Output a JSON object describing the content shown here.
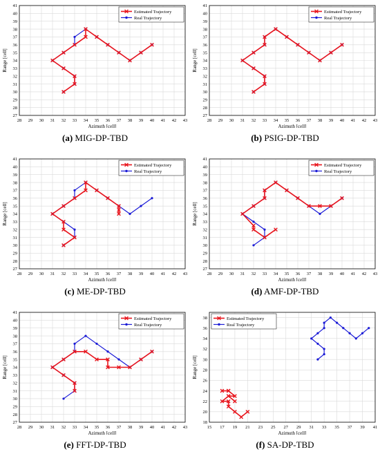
{
  "colors": {
    "estimated": "#e8141c",
    "real": "#1a1ad6",
    "grid": "#d9d9d9",
    "axis": "#000000"
  },
  "legend": {
    "estimated": "Estimated Trajectory",
    "real": "Real Trajectory"
  },
  "chart_data": [
    {
      "type": "line",
      "panel_label": "(a)",
      "caption": "MIG-DP-TBD",
      "xlabel": "Azimuth [cell]",
      "ylabel": "Range [cell]",
      "xlim": [
        28,
        43
      ],
      "ylim": [
        27,
        41
      ],
      "xticks": [
        28,
        29,
        30,
        31,
        32,
        33,
        34,
        35,
        36,
        37,
        38,
        39,
        40,
        41,
        42,
        43
      ],
      "yticks": [
        27,
        28,
        29,
        30,
        31,
        32,
        33,
        34,
        35,
        36,
        37,
        38,
        39,
        40,
        41
      ],
      "grid": true,
      "legend_position": "top-right",
      "series": [
        {
          "name": "Estimated Trajectory",
          "marker": "x",
          "x": [
            32,
            33,
            33,
            32,
            31,
            32,
            33,
            34,
            34,
            35,
            36,
            37,
            38,
            39,
            40
          ],
          "y": [
            30,
            31,
            32,
            33,
            34,
            35,
            36,
            37,
            38,
            37,
            36,
            35,
            34,
            35,
            36
          ]
        },
        {
          "name": "Real Trajectory",
          "marker": "dot",
          "x": [
            32,
            33,
            33,
            32,
            31,
            32,
            33,
            33,
            34,
            35,
            36,
            37,
            38,
            39,
            40
          ],
          "y": [
            30,
            31,
            32,
            33,
            34,
            35,
            36,
            37,
            38,
            37,
            36,
            35,
            34,
            35,
            36
          ]
        }
      ]
    },
    {
      "type": "line",
      "panel_label": "(b)",
      "caption": "PSIG-DP-TBD",
      "xlabel": "Azimuth [cell]",
      "ylabel": "Range [cell]",
      "xlim": [
        28,
        43
      ],
      "ylim": [
        27,
        41
      ],
      "xticks": [
        28,
        29,
        30,
        31,
        32,
        33,
        34,
        35,
        36,
        37,
        38,
        39,
        40,
        41,
        42,
        43
      ],
      "yticks": [
        27,
        28,
        29,
        30,
        31,
        32,
        33,
        34,
        35,
        36,
        37,
        38,
        39,
        40,
        41
      ],
      "grid": true,
      "legend_position": "top-right",
      "series": [
        {
          "name": "Estimated Trajectory",
          "marker": "x",
          "x": [
            32,
            33,
            33,
            32,
            31,
            32,
            33,
            33,
            34,
            35,
            36,
            37,
            38,
            39,
            40
          ],
          "y": [
            30,
            31,
            32,
            33,
            34,
            35,
            36,
            37,
            38,
            37,
            36,
            35,
            34,
            35,
            36
          ]
        },
        {
          "name": "Real Trajectory",
          "marker": "dot",
          "x": [
            32,
            33,
            33,
            32,
            31,
            32,
            33,
            33,
            34,
            35,
            36,
            37,
            38,
            39,
            40
          ],
          "y": [
            30,
            31,
            32,
            33,
            34,
            35,
            36,
            37,
            38,
            37,
            36,
            35,
            34,
            35,
            36
          ]
        }
      ]
    },
    {
      "type": "line",
      "panel_label": "(c)",
      "caption": "ME-DP-TBD",
      "xlabel": "Azimuth [cell]",
      "ylabel": "Range [cell]",
      "xlim": [
        28,
        43
      ],
      "ylim": [
        27,
        41
      ],
      "xticks": [
        28,
        29,
        30,
        31,
        32,
        33,
        34,
        35,
        36,
        37,
        38,
        39,
        40,
        41,
        42,
        43
      ],
      "yticks": [
        27,
        28,
        29,
        30,
        31,
        32,
        33,
        34,
        35,
        36,
        37,
        38,
        39,
        40,
        41
      ],
      "grid": true,
      "legend_position": "top-right",
      "series": [
        {
          "name": "Estimated Trajectory",
          "marker": "x",
          "x": [
            32,
            33,
            32,
            32,
            31,
            32,
            33,
            34,
            34,
            35,
            36,
            37,
            37,
            37
          ],
          "y": [
            30,
            31,
            32,
            33,
            34,
            35,
            36,
            37,
            38,
            37,
            36,
            35,
            34,
            34.5
          ]
        },
        {
          "name": "Real Trajectory",
          "marker": "dot",
          "x": [
            32,
            33,
            33,
            32,
            31,
            32,
            33,
            33,
            34,
            35,
            36,
            37,
            38,
            39,
            40
          ],
          "y": [
            30,
            31,
            32,
            33,
            34,
            35,
            36,
            37,
            38,
            37,
            36,
            35,
            34,
            35,
            36
          ]
        }
      ]
    },
    {
      "type": "line",
      "panel_label": "(d)",
      "caption": "AMF-DP-TBD",
      "xlabel": "Azimuth [cell]",
      "ylabel": "Range [cell]",
      "xlim": [
        28,
        43
      ],
      "ylim": [
        27,
        41
      ],
      "xticks": [
        28,
        29,
        30,
        31,
        32,
        33,
        34,
        35,
        36,
        37,
        38,
        39,
        40,
        41,
        42,
        43
      ],
      "yticks": [
        27,
        28,
        29,
        30,
        31,
        32,
        33,
        34,
        35,
        36,
        37,
        38,
        39,
        40,
        41
      ],
      "grid": true,
      "legend_position": "top-right",
      "series": [
        {
          "name": "Estimated Trajectory",
          "marker": "x",
          "x": [
            34,
            33,
            32,
            32,
            31,
            32,
            33,
            33,
            34,
            35,
            36,
            37,
            38,
            39,
            40
          ],
          "y": [
            32,
            31,
            32,
            32.5,
            34,
            35,
            36,
            37,
            38,
            37,
            36,
            35,
            35,
            35,
            36
          ]
        },
        {
          "name": "Real Trajectory",
          "marker": "dot",
          "x": [
            32,
            33,
            33,
            32,
            31,
            32,
            33,
            33,
            34,
            35,
            36,
            37,
            38,
            39,
            40
          ],
          "y": [
            30,
            31,
            32,
            33,
            34,
            35,
            36,
            37,
            38,
            37,
            36,
            35,
            34,
            35,
            36
          ]
        }
      ]
    },
    {
      "type": "line",
      "panel_label": "(e)",
      "caption": "FFT-DP-TBD",
      "xlabel": "Azimuth [cell]",
      "ylabel": "Range [cell]",
      "xlim": [
        28,
        43
      ],
      "ylim": [
        27,
        41
      ],
      "xticks": [
        28,
        29,
        30,
        31,
        32,
        33,
        34,
        35,
        36,
        37,
        38,
        39,
        40,
        41,
        42,
        43
      ],
      "yticks": [
        27,
        28,
        29,
        30,
        31,
        32,
        33,
        34,
        35,
        36,
        37,
        38,
        39,
        40,
        41
      ],
      "grid": true,
      "legend_position": "top-right",
      "series": [
        {
          "name": "Estimated Trajectory",
          "marker": "x",
          "x": [
            33,
            33,
            32,
            31,
            32,
            33,
            34,
            35,
            36,
            36,
            37,
            38,
            39,
            40
          ],
          "y": [
            31,
            32,
            33,
            34,
            35,
            36,
            36,
            35,
            35,
            34,
            34,
            34,
            35,
            36
          ]
        },
        {
          "name": "Real Trajectory",
          "marker": "dot",
          "x": [
            32,
            33,
            33,
            32,
            31,
            32,
            33,
            33,
            34,
            35,
            36,
            37,
            38,
            39,
            40
          ],
          "y": [
            30,
            31,
            32,
            33,
            34,
            35,
            36,
            37,
            38,
            37,
            36,
            35,
            34,
            35,
            36
          ]
        }
      ]
    },
    {
      "type": "line",
      "panel_label": "(f)",
      "caption": "SA-DP-TBD",
      "xlabel": "Azimuth [cell]",
      "ylabel": "Range [cell]",
      "xlim": [
        15,
        41
      ],
      "ylim": [
        18,
        39
      ],
      "xticks": [
        15,
        17,
        19,
        21,
        23,
        25,
        27,
        29,
        31,
        33,
        35,
        37,
        39,
        41
      ],
      "yticks": [
        18,
        20,
        22,
        24,
        26,
        28,
        30,
        32,
        34,
        36,
        38
      ],
      "grid": true,
      "legend_position": "top-left",
      "series": [
        {
          "name": "Estimated Trajectory",
          "marker": "x",
          "x": [
            21,
            20,
            19,
            18,
            18,
            17,
            18,
            19,
            18,
            19,
            18,
            17,
            18
          ],
          "y": [
            20,
            19,
            20,
            21,
            22,
            22,
            23,
            22,
            23,
            23,
            24,
            24,
            24
          ]
        },
        {
          "name": "Real Trajectory",
          "marker": "dot",
          "x": [
            32,
            33,
            33,
            32,
            31,
            32,
            33,
            33,
            34,
            35,
            36,
            37,
            38,
            39,
            40
          ],
          "y": [
            30,
            31,
            32,
            33,
            34,
            35,
            36,
            37,
            38,
            37,
            36,
            35,
            34,
            35,
            36
          ]
        }
      ]
    }
  ]
}
